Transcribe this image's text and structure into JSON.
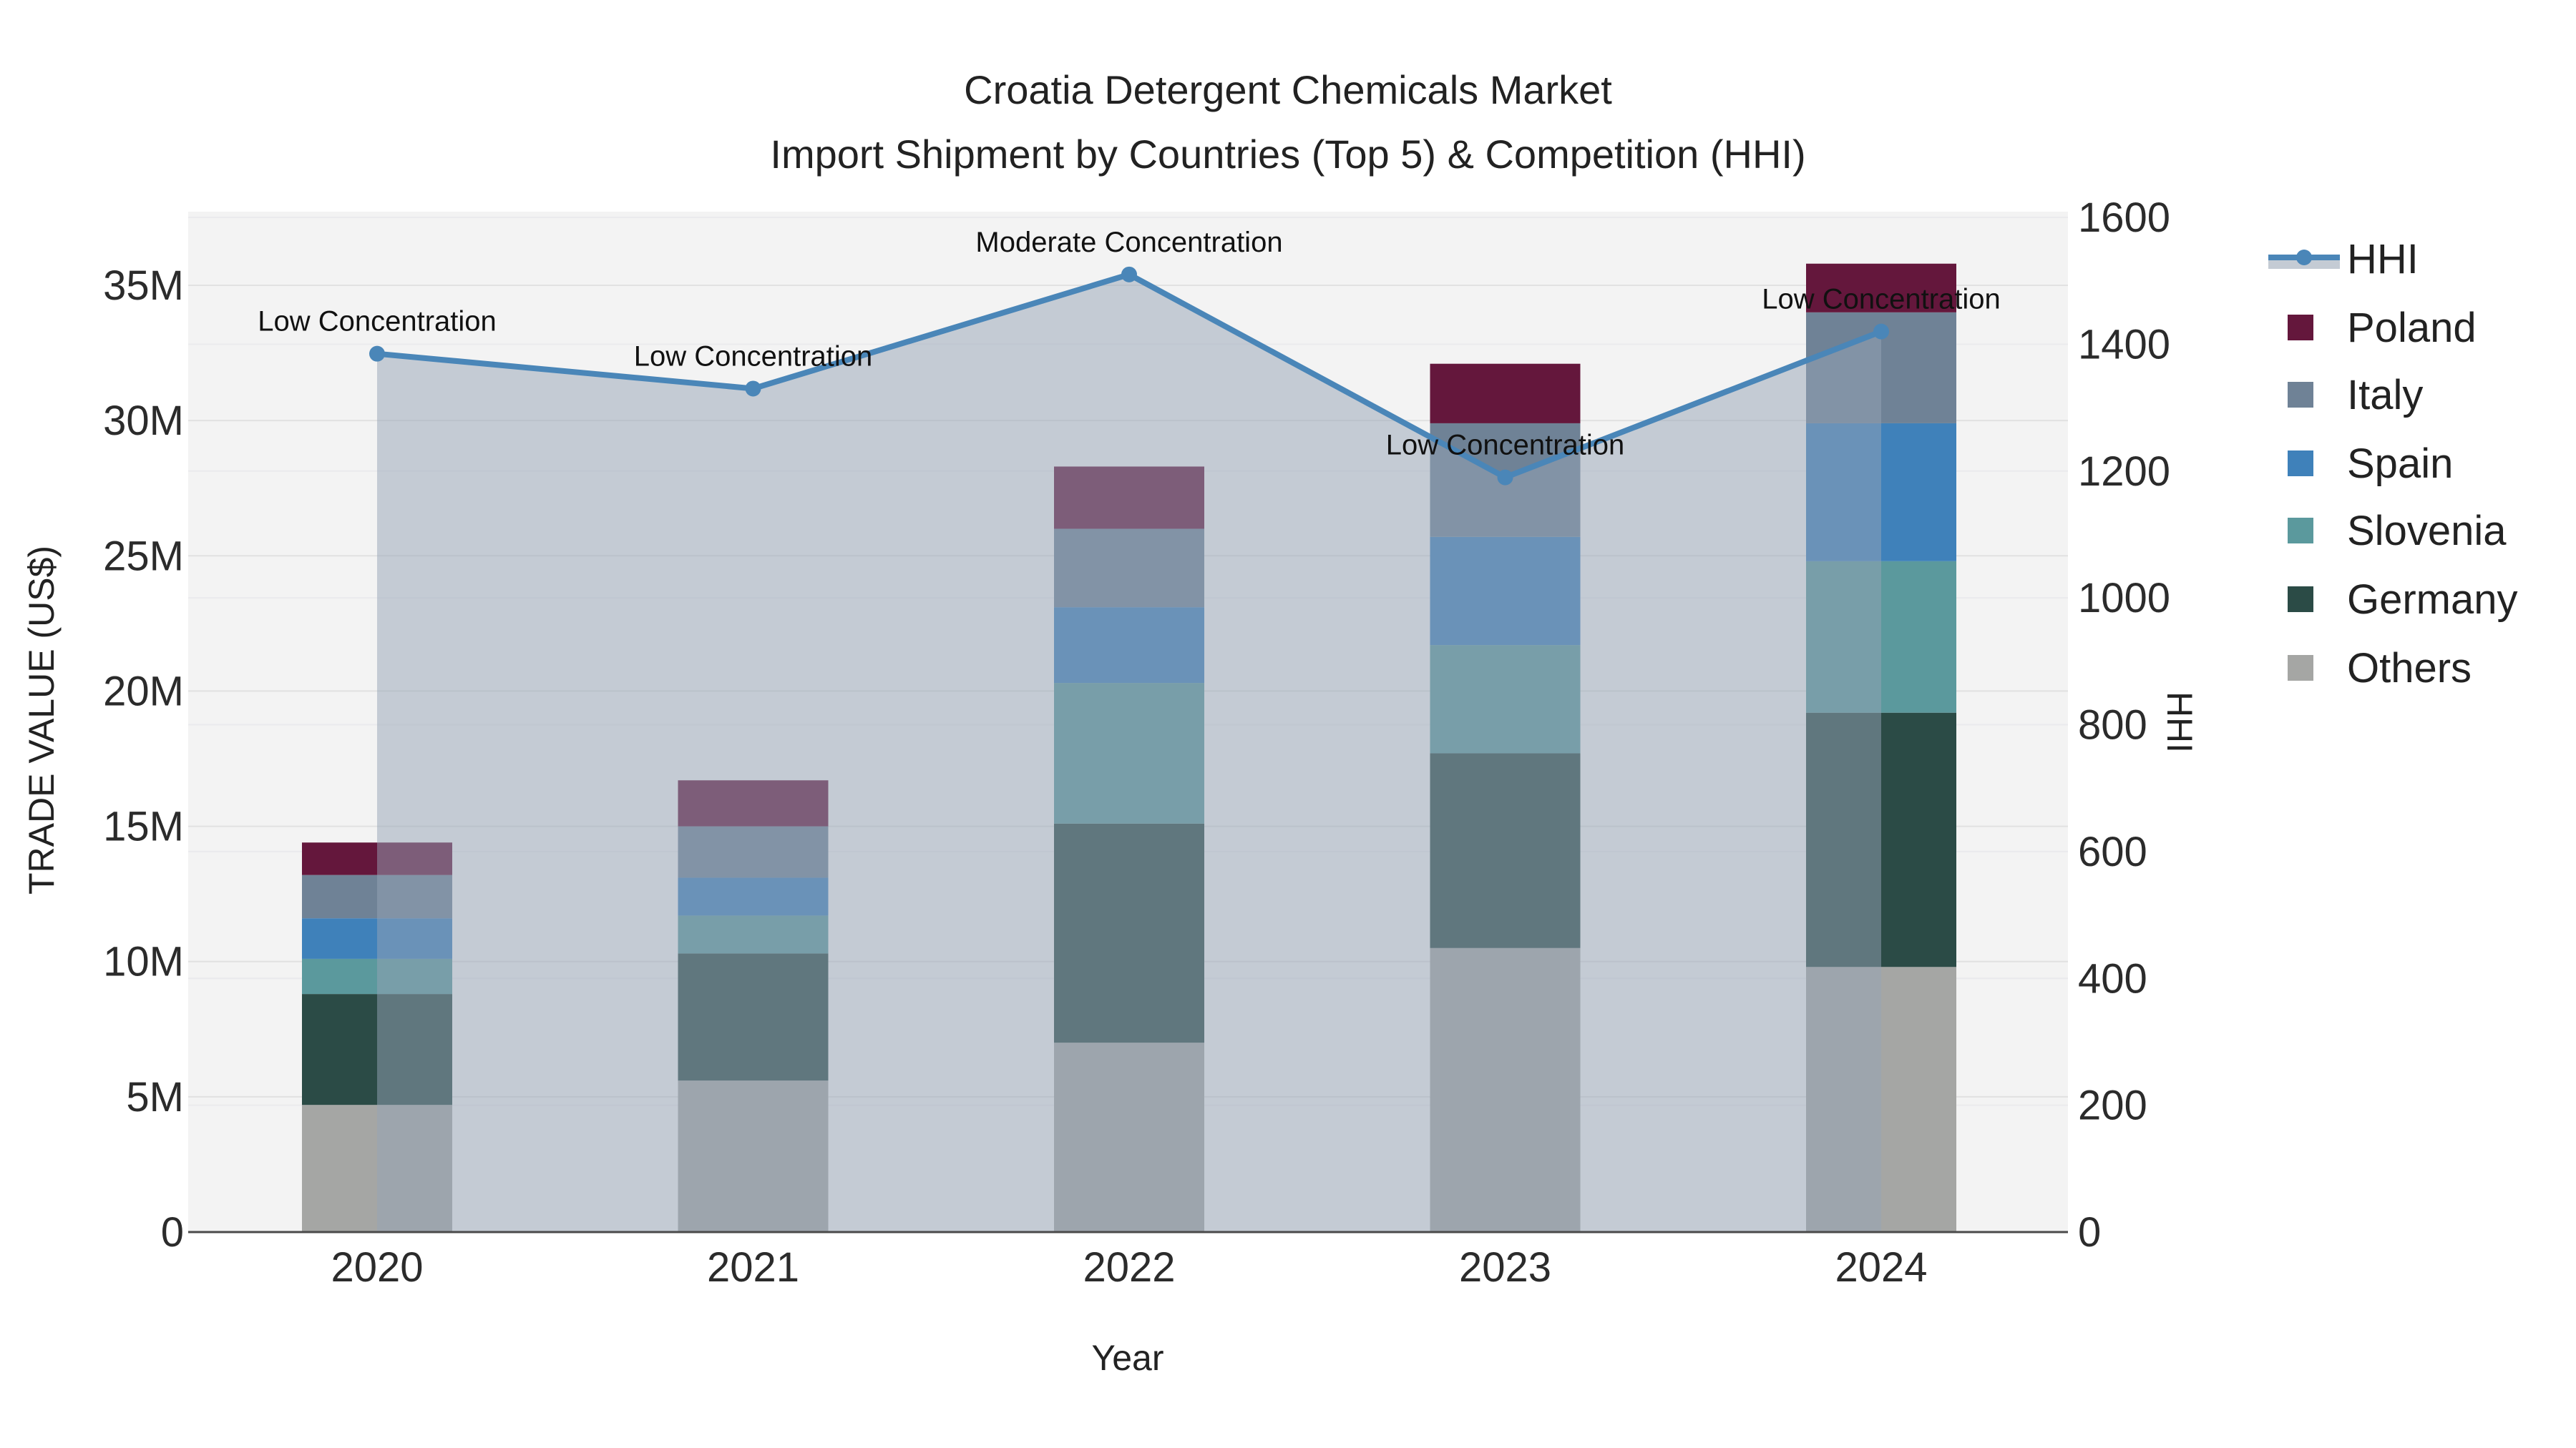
{
  "title": {
    "line1": "Croatia Detergent Chemicals Market",
    "line2": "Import Shipment by Countries (Top 5) & Competition (HHI)"
  },
  "axes": {
    "x": {
      "title": "Year",
      "ticks": [
        "2020",
        "2021",
        "2022",
        "2023",
        "2024"
      ]
    },
    "y_left": {
      "title": "TRADE VALUE (US$)",
      "ticks": [
        "0",
        "5M",
        "10M",
        "15M",
        "20M",
        "25M",
        "30M",
        "35M"
      ],
      "tick_values_millions": [
        0,
        5,
        10,
        15,
        20,
        25,
        30,
        35
      ],
      "max_millions": 35
    },
    "y_right": {
      "title": "HHI",
      "ticks": [
        "0",
        "200",
        "400",
        "600",
        "800",
        "1000",
        "1200",
        "1400",
        "1600"
      ],
      "tick_values": [
        0,
        200,
        400,
        600,
        800,
        1000,
        1200,
        1400,
        1600
      ],
      "max": 1600
    }
  },
  "legend": {
    "items": [
      {
        "label": "HHI",
        "type": "line",
        "color": "#4a86b8",
        "band_color": "#c4cbd4"
      },
      {
        "label": "Poland",
        "type": "box",
        "color": "#64173c"
      },
      {
        "label": "Italy",
        "type": "box",
        "color": "#6f8296"
      },
      {
        "label": "Spain",
        "type": "box",
        "color": "#3f81ba"
      },
      {
        "label": "Slovenia",
        "type": "box",
        "color": "#5b999d"
      },
      {
        "label": "Germany",
        "type": "box",
        "color": "#2b4b46"
      },
      {
        "label": "Others",
        "type": "box",
        "color": "#a5a6a4"
      }
    ]
  },
  "chart_data": {
    "type": "bar+line",
    "title": "Croatia Detergent Chemicals Market — Import Shipment by Countries (Top 5) & Competition (HHI)",
    "xlabel": "Year",
    "ylabel_left": "TRADE VALUE (US$)",
    "ylabel_right": "HHI",
    "categories": [
      "2020",
      "2021",
      "2022",
      "2023",
      "2024"
    ],
    "bar_mode": "stacked",
    "series": [
      {
        "name": "Others",
        "unit": "USD millions",
        "color": "#a5a6a4",
        "values": [
          4.7,
          5.6,
          7.0,
          10.5,
          9.8
        ]
      },
      {
        "name": "Germany",
        "unit": "USD millions",
        "color": "#2b4b46",
        "values": [
          4.1,
          4.7,
          8.1,
          7.2,
          9.4
        ]
      },
      {
        "name": "Slovenia",
        "unit": "USD millions",
        "color": "#5b999d",
        "values": [
          1.3,
          1.4,
          5.2,
          4.0,
          5.6
        ]
      },
      {
        "name": "Spain",
        "unit": "USD millions",
        "color": "#3f81ba",
        "values": [
          1.5,
          1.4,
          2.8,
          4.0,
          5.1
        ]
      },
      {
        "name": "Italy",
        "unit": "USD millions",
        "color": "#6f8296",
        "values": [
          1.6,
          1.9,
          2.9,
          4.2,
          4.1
        ]
      },
      {
        "name": "Poland",
        "unit": "USD millions",
        "color": "#64173c",
        "values": [
          1.2,
          1.7,
          2.3,
          2.2,
          1.8
        ]
      }
    ],
    "stacked_totals_millions": [
      14.4,
      16.7,
      28.3,
      32.1,
      35.8
    ],
    "line_series": {
      "name": "HHI",
      "axis": "right",
      "color": "#4a86b8",
      "fill_color": "rgba(150,163,182,0.5)",
      "values": [
        1385,
        1330,
        1510,
        1190,
        1420
      ]
    },
    "annotations": [
      "Low Concentration",
      "Low Concentration",
      "Moderate Concentration",
      "Low Concentration",
      "Low Concentration"
    ],
    "ylim_left_millions": [
      0,
      35
    ],
    "ylim_right": [
      0,
      1600
    ],
    "grid": true,
    "legend_position": "right",
    "plot_background": "#f3f3f3"
  }
}
